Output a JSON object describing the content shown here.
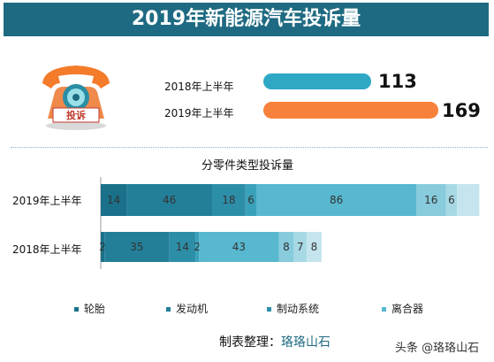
{
  "title": "2019年新能源汽车投诉量",
  "phone_label": "投诉",
  "comparison": [
    {
      "label": "2018年上半年",
      "value": 113,
      "color": "#2fa8c6"
    },
    {
      "label": "2019年上半年",
      "value": 169,
      "color": "#f7813a"
    }
  ],
  "chart_data": {
    "type": "bar",
    "orientation": "horizontal",
    "stacked": true,
    "title": "分零件类型投诉量",
    "categories": [
      "2019年上半年",
      "2018年上半年"
    ],
    "series": [
      {
        "name": "轮胎",
        "color": "#1a7189",
        "values": [
          14,
          2
        ]
      },
      {
        "name": "发动机",
        "color": "#237f98",
        "values": [
          46,
          35
        ]
      },
      {
        "name": "制动系统",
        "color": "#2d8ea8",
        "values": [
          18,
          14
        ]
      },
      {
        "name": "",
        "color": "#3aa1bb",
        "values": [
          6,
          2
        ]
      },
      {
        "name": "离合器",
        "color": "#57b8cf",
        "values": [
          86,
          43
        ]
      },
      {
        "name": "",
        "color": "#87cbdc",
        "values": [
          16,
          8
        ]
      },
      {
        "name": "",
        "color": "#a7d9e5",
        "values": [
          6,
          7
        ]
      },
      {
        "name": "",
        "color": "#c5e5ee",
        "values": [
          12,
          8
        ]
      }
    ],
    "data_labels": [
      [
        "14",
        "46",
        "18",
        "6",
        "86",
        "16",
        "6",
        ""
      ],
      [
        "2",
        "35",
        "14",
        "2",
        "43",
        "8",
        "7",
        "8"
      ]
    ]
  },
  "legend": [
    {
      "label": "轮胎",
      "color": "#1a7189"
    },
    {
      "label": "发动机",
      "color": "#237f98"
    },
    {
      "label": "制动系统",
      "color": "#2d8ea8"
    },
    {
      "label": "离合器",
      "color": "#57b8cf"
    }
  ],
  "credit": {
    "prefix": "制表整理：",
    "name": "珞珞山石"
  },
  "watermark": "头条 @珞珞山石"
}
